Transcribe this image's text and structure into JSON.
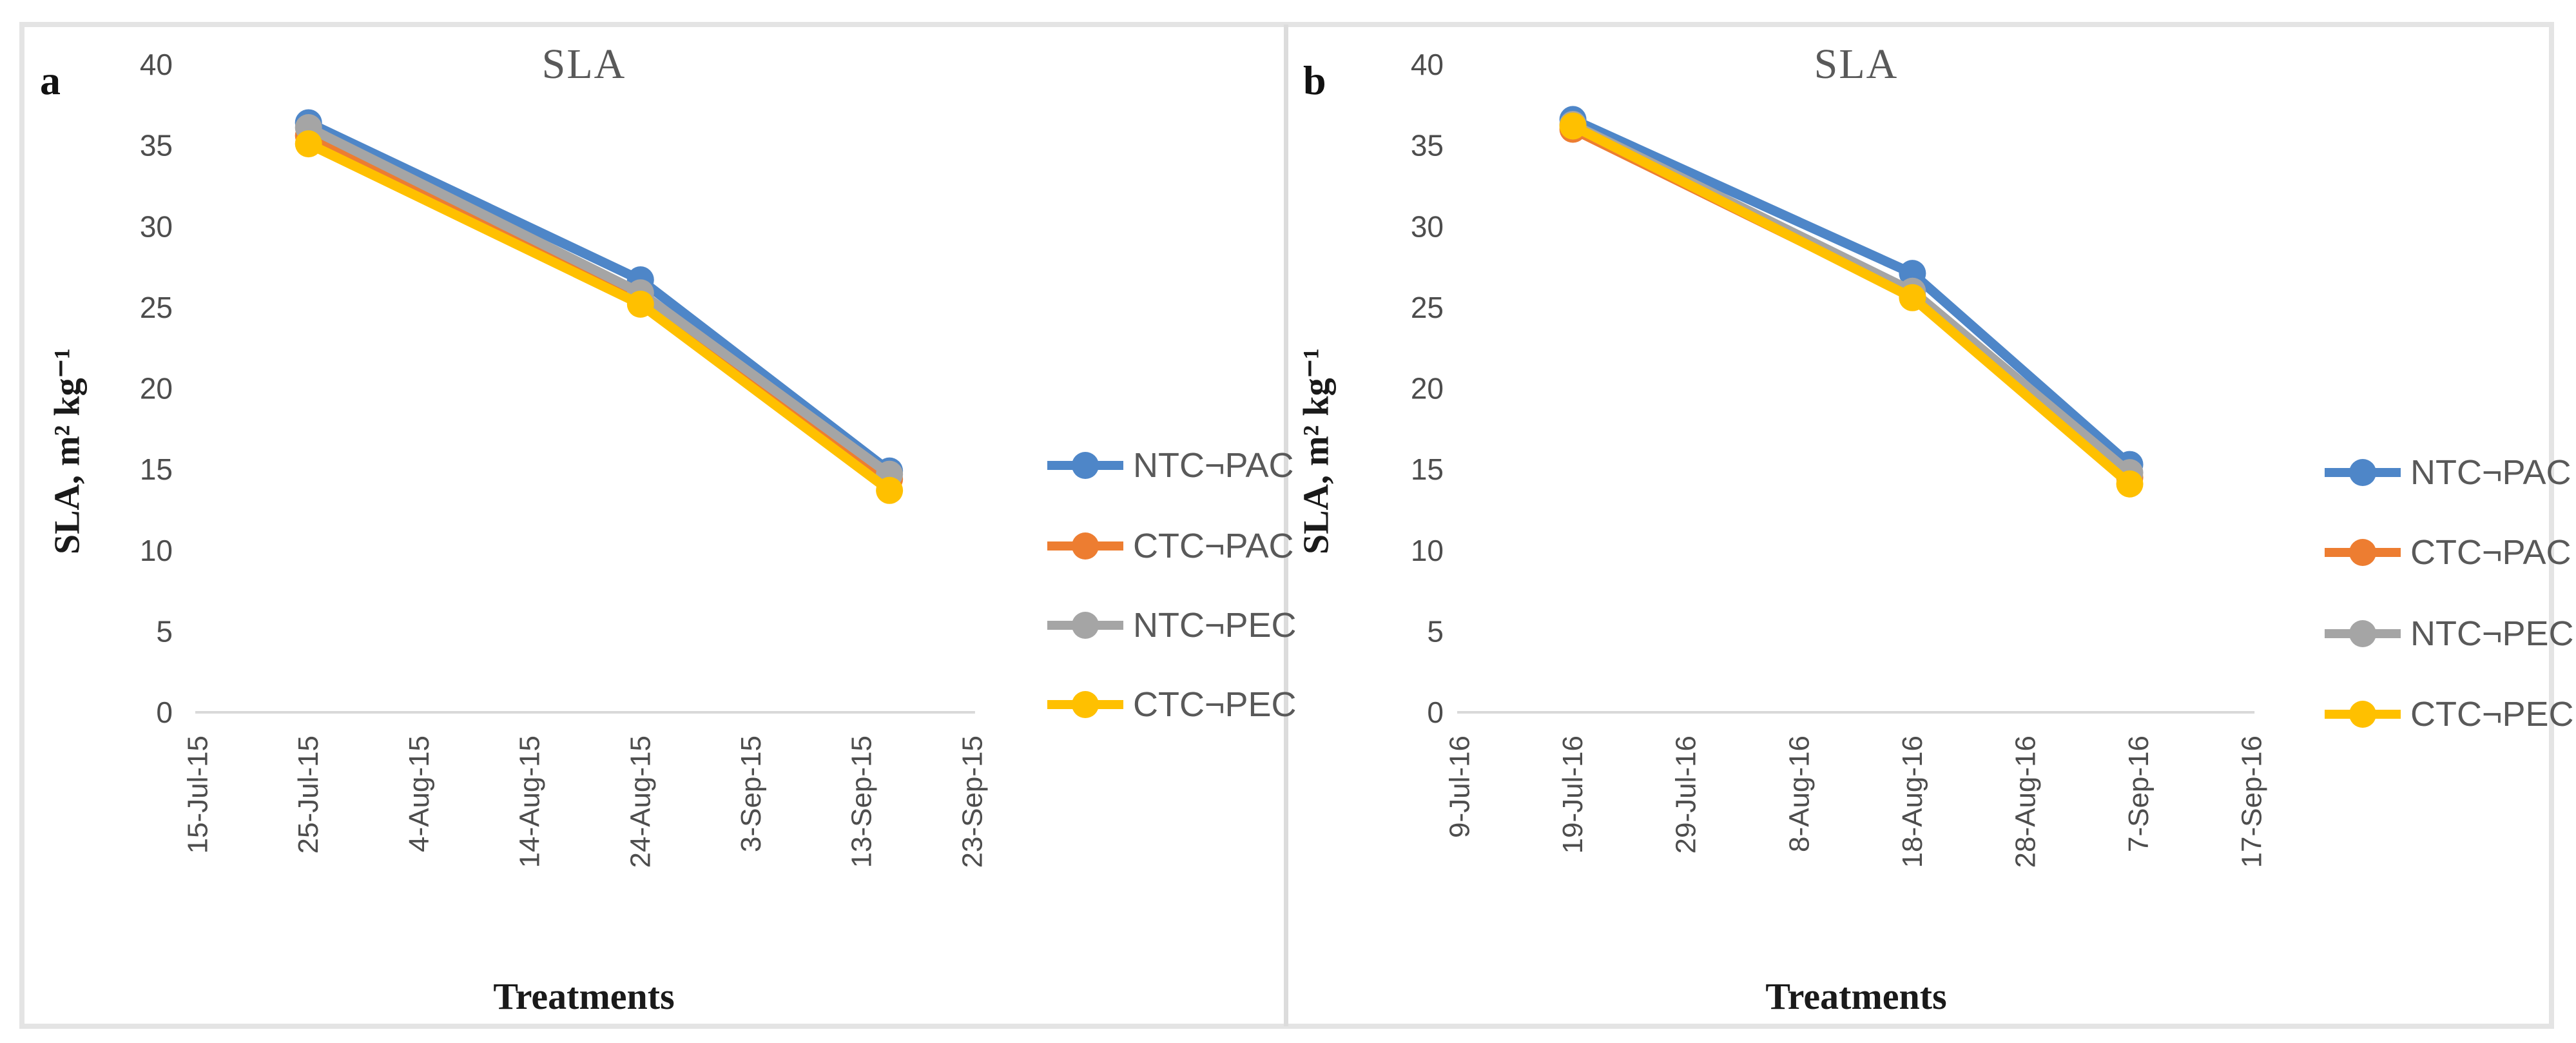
{
  "figure": {
    "outer_frame_color": "#e4e4e4",
    "axis_line_color": "#d9d9d9",
    "tick_label_color": "#4d4d4d",
    "legend_label_color": "#595959",
    "title_color": "#595959"
  },
  "chart_data": [
    {
      "type": "line",
      "panel_label": "a",
      "title": "SLA",
      "xlabel": "Treatments",
      "ylabel": "SLA, m² kg⁻¹",
      "ylim": [
        0,
        40
      ],
      "y_ticks": [
        40,
        35,
        30,
        25,
        20,
        15,
        10,
        5,
        0
      ],
      "grid": false,
      "legend_position": "right",
      "categories": [
        "15-Jul-15",
        "25-Jul-15",
        "4-Aug-15",
        "14-Aug-15",
        "24-Aug-15",
        "3-Sep-15",
        "13-Sep-15",
        "23-Sep-15"
      ],
      "series": [
        {
          "name": "NTC¬PAC",
          "color": "#4e86c8",
          "marker": "circle",
          "x_index": [
            1,
            4,
            6.25
          ],
          "values": [
            36.4,
            26.7,
            14.9
          ]
        },
        {
          "name": "CTC¬PAC",
          "color": "#ed7d31",
          "marker": "circle",
          "x_index": [
            1,
            4,
            6.25
          ],
          "values": [
            35.6,
            25.6,
            14.4
          ]
        },
        {
          "name": "NTC¬PEC",
          "color": "#a5a5a5",
          "marker": "circle",
          "x_index": [
            1,
            4,
            6.25
          ],
          "values": [
            36.1,
            25.9,
            14.7
          ]
        },
        {
          "name": "CTC¬PEC",
          "color": "#ffc000",
          "marker": "circle",
          "x_index": [
            1,
            4,
            6.25
          ],
          "values": [
            35.1,
            25.2,
            13.7
          ]
        }
      ]
    },
    {
      "type": "line",
      "panel_label": "b",
      "title": "SLA",
      "xlabel": "Treatments",
      "ylabel": "SLA, m² kg⁻¹",
      "ylim": [
        0,
        40
      ],
      "y_ticks": [
        40,
        35,
        30,
        25,
        20,
        15,
        10,
        5,
        0
      ],
      "grid": false,
      "legend_position": "right",
      "categories": [
        "9-Jul-16",
        "19-Jul-16",
        "29-Jul-16",
        "8-Aug-16",
        "18-Aug-16",
        "28-Aug-16",
        "7-Sep-16",
        "17-Sep-16"
      ],
      "series": [
        {
          "name": "NTC¬PAC",
          "color": "#4e86c8",
          "marker": "circle",
          "x_index": [
            1,
            4,
            5.92
          ],
          "values": [
            36.6,
            27.1,
            15.3
          ]
        },
        {
          "name": "CTC¬PAC",
          "color": "#ed7d31",
          "marker": "circle",
          "x_index": [
            1,
            4,
            5.92
          ],
          "values": [
            36.0,
            25.7,
            14.5
          ]
        },
        {
          "name": "NTC¬PEC",
          "color": "#a5a5a5",
          "marker": "circle",
          "x_index": [
            1,
            4,
            5.92
          ],
          "values": [
            36.3,
            26.0,
            14.8
          ]
        },
        {
          "name": "CTC¬PEC",
          "color": "#ffc000",
          "marker": "circle",
          "x_index": [
            1,
            4,
            5.92
          ],
          "values": [
            36.2,
            25.6,
            14.1
          ]
        }
      ]
    }
  ]
}
